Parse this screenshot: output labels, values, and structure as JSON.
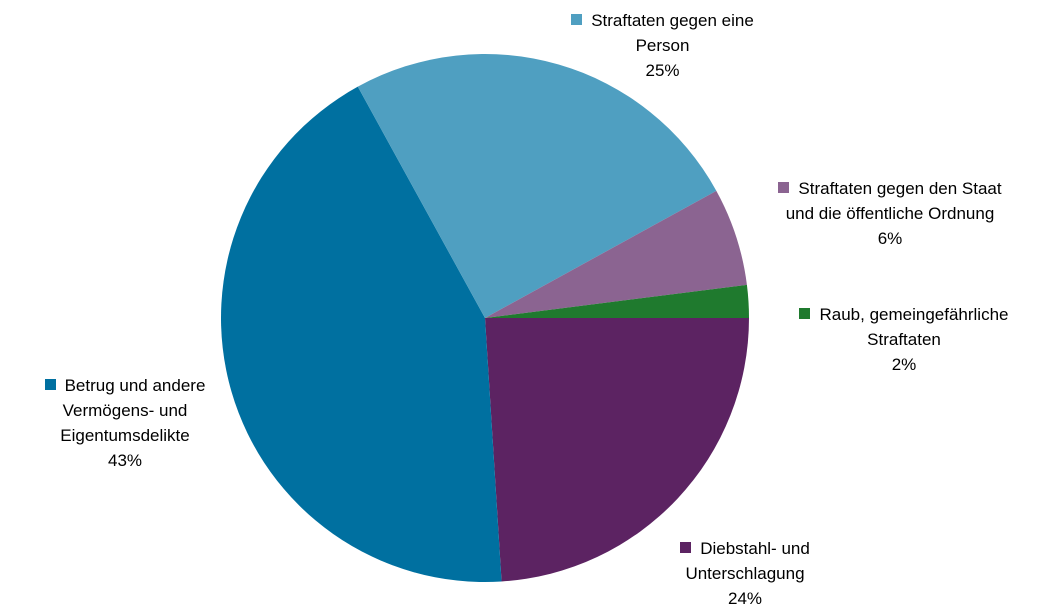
{
  "chart_data": {
    "type": "pie",
    "categories": [
      "Diebstahl- und Unterschlagung",
      "Betrug und andere Vermögens- und Eigentumsdelikte",
      "Straftaten gegen eine Person",
      "Straftaten gegen den Staat und die öffentliche Ordnung",
      "Raub, gemeingefährliche Straftaten"
    ],
    "values": [
      24,
      43,
      25,
      6,
      2
    ],
    "value_labels": [
      "24%",
      "43%",
      "25%",
      "6%",
      "2%"
    ],
    "colors": [
      "#5c2362",
      "#0070a0",
      "#4f9fc1",
      "#8b6491",
      "#1f7a2e"
    ]
  }
}
